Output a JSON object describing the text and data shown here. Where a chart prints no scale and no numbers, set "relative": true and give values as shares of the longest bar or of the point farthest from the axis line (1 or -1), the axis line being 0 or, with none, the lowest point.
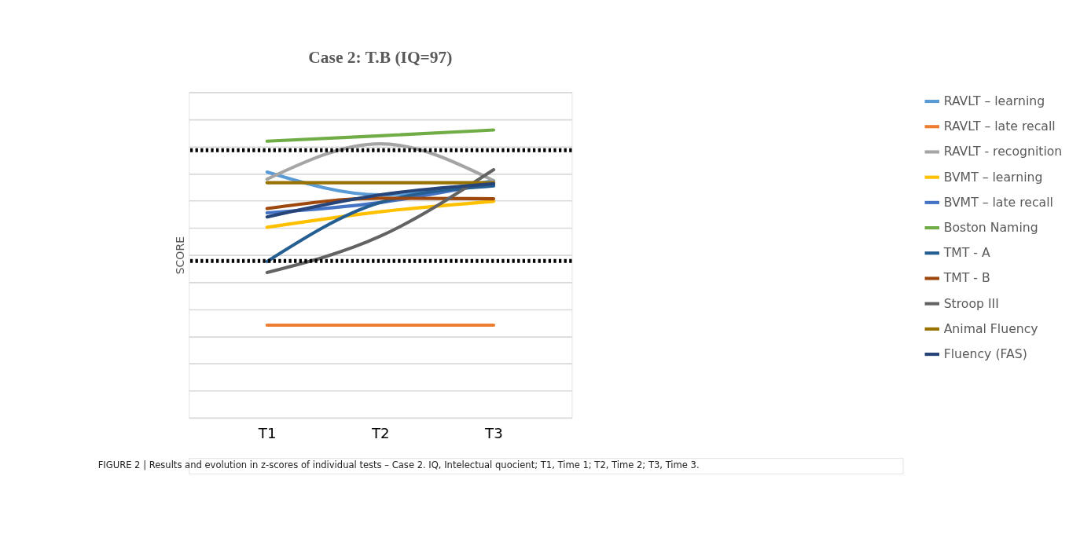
{
  "chart_data": {
    "type": "line",
    "title": "Case 2: T.B (IQ=97)",
    "ylabel": "SCORE",
    "relative": true,
    "grid": "y",
    "legend": "right",
    "line_style": "solid",
    "marker": "none",
    "categories": [
      "T1",
      "T2",
      "T3"
    ],
    "series": [
      {
        "name": "RAVLT – learning",
        "color": "#5b9bd5",
        "values": [
          0.854,
          0.775,
          0.824
        ]
      },
      {
        "name": "RAVLT – late recall",
        "color": "#ed7d31",
        "values": [
          0.322,
          0.322,
          0.322
        ]
      },
      {
        "name": "RAVLT - recognition",
        "color": "#a5a5a5",
        "values": [
          0.829,
          0.952,
          0.824
        ]
      },
      {
        "name": "BVMT – learning",
        "color": "#ffc000",
        "values": [
          0.662,
          0.716,
          0.752
        ]
      },
      {
        "name": "BVMT – late recall",
        "color": "#4472c4",
        "values": [
          0.712,
          0.748,
          0.817
        ]
      },
      {
        "name": "Boston Naming",
        "color": "#70ad47",
        "values": [
          0.961,
          0.98,
          1
        ]
      },
      {
        "name": "TMT - A",
        "color": "#255e91",
        "values": [
          0.543,
          0.748,
          0.806
        ]
      },
      {
        "name": "TMT - B",
        "color": "#9e480e",
        "values": [
          0.727,
          0.763,
          0.761
        ]
      },
      {
        "name": "Stroop III",
        "color": "#636363",
        "values": [
          0.505,
          0.631,
          0.862
        ]
      },
      {
        "name": "Animal Fluency",
        "color": "#997300",
        "values": [
          0.817,
          0.817,
          0.817
        ]
      },
      {
        "name": "Fluency (FAS)",
        "color": "#264478",
        "values": [
          0.698,
          0.775,
          0.813
        ]
      }
    ],
    "ref_lines": [
      {
        "axis": "y",
        "value": 0.93,
        "color": "#000000",
        "line_style": "dotted"
      },
      {
        "axis": "y",
        "value": 0.545,
        "color": "#000000",
        "line_style": "dotted"
      }
    ],
    "annotations": [
      "FIGURE 2 | Results and evolution in z-scores of individual tests – Case 2. IQ, Intelectual quocient; T1, Time 1; T2, Time 2; T3, Time 3."
    ]
  }
}
